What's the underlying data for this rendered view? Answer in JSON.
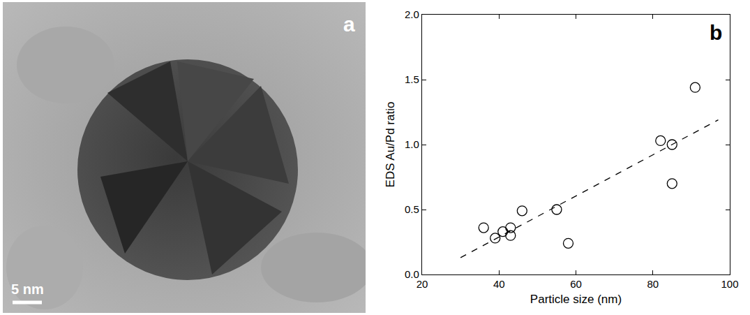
{
  "image_panel": {
    "label": "a",
    "scale_bar": "5 nm"
  },
  "chart_data": {
    "type": "scatter",
    "x_label": "Particle size (nm)",
    "y_label": "EDS Au/Pd ratio",
    "xlim": [
      20,
      100
    ],
    "xticks": [
      20,
      40,
      60,
      80,
      100
    ],
    "ylim": [
      0,
      2
    ],
    "yticks": [
      {
        "value": 0,
        "label": "0.0"
      },
      {
        "value": 0.5,
        "label": "0.5"
      },
      {
        "value": 1,
        "label": "1.0"
      },
      {
        "value": 1.5,
        "label": "1.5"
      },
      {
        "value": 2,
        "label": "2.0"
      }
    ],
    "annotations": [
      {
        "text": "b"
      }
    ],
    "series": [
      {
        "type": "scatter",
        "marker": "circle-open",
        "color": "#000000",
        "x": [
          36,
          39,
          41,
          43,
          43,
          46,
          55,
          58,
          82,
          85,
          85,
          91
        ],
        "values": [
          0.36,
          0.28,
          0.33,
          0.3,
          0.36,
          0.49,
          0.5,
          0.24,
          1.03,
          1.0,
          0.7,
          1.44
        ]
      },
      {
        "type": "line",
        "line_style": "dash",
        "color": "#000000",
        "x": [
          30,
          97
        ],
        "values": [
          0.13,
          1.19
        ]
      }
    ]
  }
}
